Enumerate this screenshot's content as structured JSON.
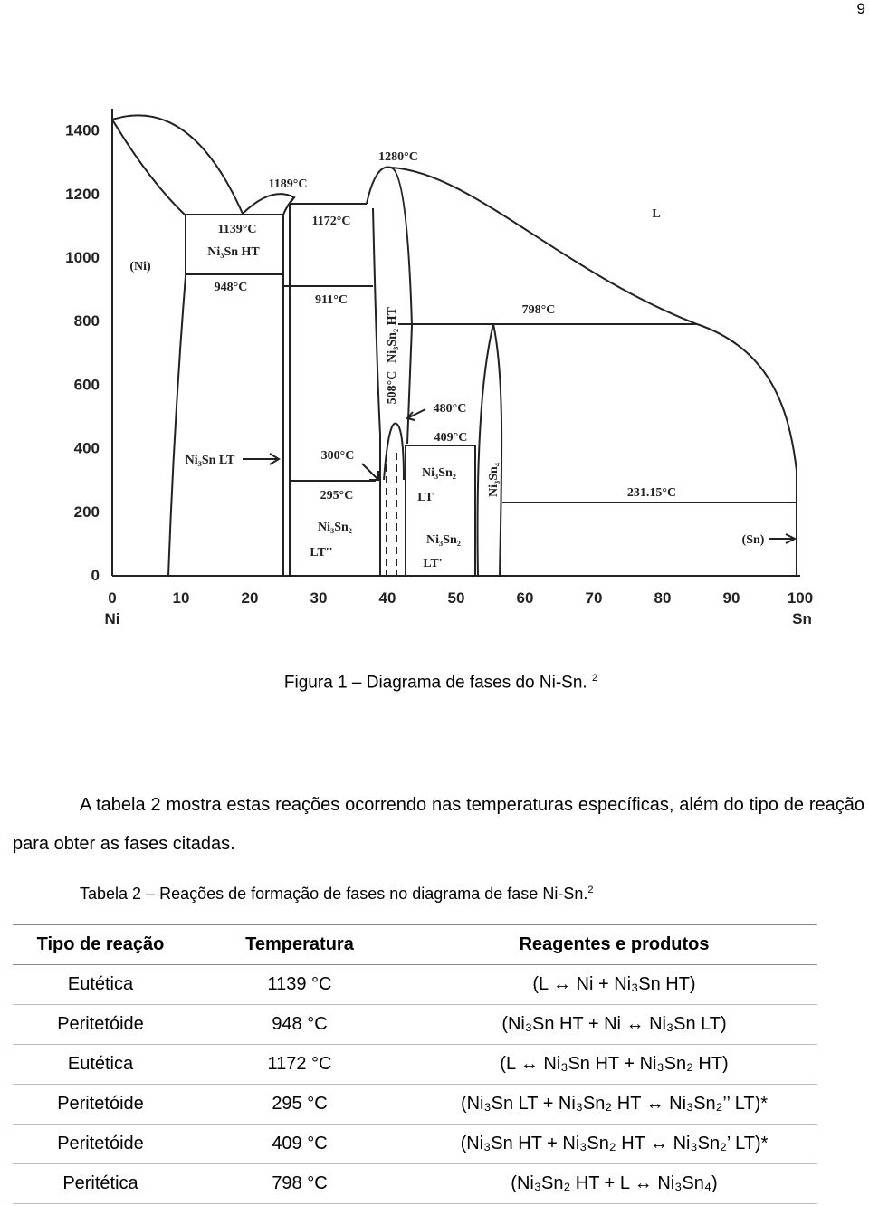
{
  "page_number": "9",
  "figure": {
    "y_ticks": [
      "0",
      "200",
      "400",
      "600",
      "800",
      "1000",
      "1200",
      "1400"
    ],
    "x_ticks": [
      "0",
      "10",
      "20",
      "30",
      "40",
      "50",
      "60",
      "70",
      "80",
      "90",
      "100"
    ],
    "x_left_label": "Ni",
    "x_right_label": "Sn",
    "labels": [
      "1189°C",
      "1280°C",
      "1139°C",
      "Ni₃Sn HT",
      "948°C",
      "1172°C",
      "911°C",
      "(Ni)",
      "L",
      "798°C",
      "480°C",
      "409°C",
      "Ni₃Sn LT",
      "300°C",
      "295°C",
      "Ni₃Sn₂",
      "LT''",
      "Ni₃Sn₂",
      "LT",
      "231.15°C",
      "Ni₃Sn₂",
      "LT'",
      "(Sn)"
    ],
    "rotated_labels": [
      "Ni₃Sn₂ HT",
      "508°C",
      "Ni₃Sn₄"
    ]
  },
  "caption": "Figura 1 – Diagrama de fases do Ni-Sn.",
  "caption_ref": "2",
  "paragraph": "A tabela 2 mostra estas reações ocorrendo nas temperaturas específicas, além do tipo de reação para obter as fases citadas.",
  "table_caption": "Tabela 2 – Reações de formação de fases no diagrama de fase Ni-Sn.",
  "table_caption_ref": "2",
  "table": {
    "header": [
      "Tipo de reação",
      "Temperatura",
      "Reagentes e produtos"
    ],
    "rows": [
      [
        "Eutética",
        "1139 °C",
        "(L ↔ Ni + Ni₃Sn HT)"
      ],
      [
        "Peritetóide",
        "948 °C",
        "(Ni₃Sn HT + Ni ↔ Ni₃Sn LT)"
      ],
      [
        "Eutética",
        "1172 °C",
        "(L ↔ Ni₃Sn HT + Ni₃Sn₂ HT)"
      ],
      [
        "Peritetóide",
        "295 °C",
        "(Ni₃Sn LT + Ni₃Sn₂ HT ↔ Ni₃Sn₂’’ LT)*"
      ],
      [
        "Peritetóide",
        "409 °C",
        "(Ni₃Sn HT + Ni₃Sn₂ HT ↔ Ni₃Sn₂’ LT)*"
      ],
      [
        "Peritética",
        "798 °C",
        "(Ni₃Sn₂ HT + L ↔ Ni₃Sn₄)"
      ]
    ]
  }
}
